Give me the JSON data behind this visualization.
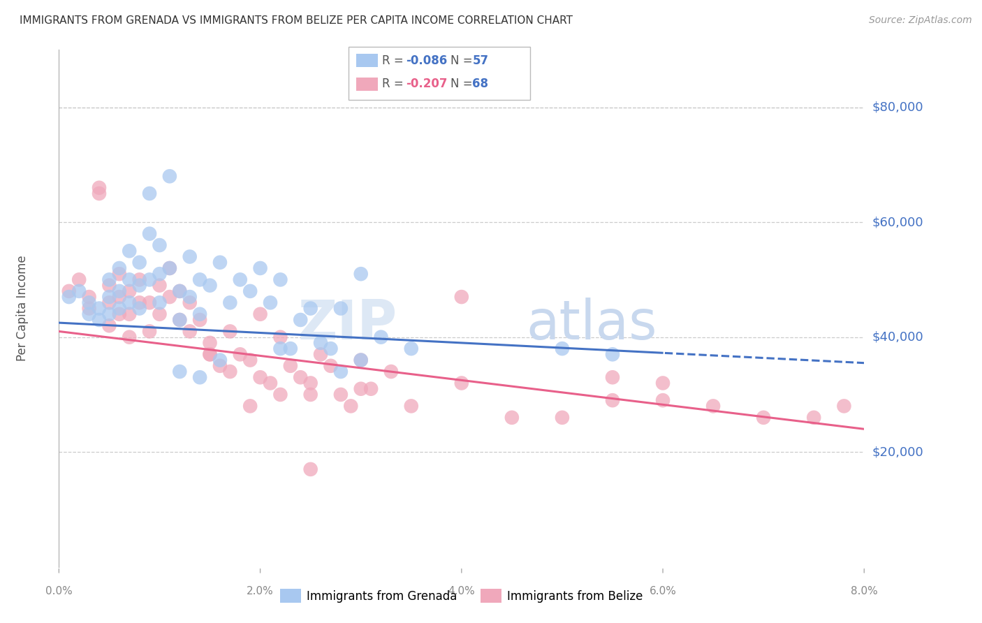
{
  "title": "IMMIGRANTS FROM GRENADA VS IMMIGRANTS FROM BELIZE PER CAPITA INCOME CORRELATION CHART",
  "source": "Source: ZipAtlas.com",
  "ylabel": "Per Capita Income",
  "x_min": 0.0,
  "x_max": 0.08,
  "y_min": 0,
  "y_max": 90000,
  "yticks": [
    20000,
    40000,
    60000,
    80000
  ],
  "ytick_labels": [
    "$20,000",
    "$40,000",
    "$60,000",
    "$80,000"
  ],
  "grenada_R": -0.086,
  "grenada_N": 57,
  "belize_R": -0.207,
  "belize_N": 68,
  "grenada_color": "#A8C8F0",
  "belize_color": "#F0A8BB",
  "grenada_line_color": "#4472C4",
  "belize_line_color": "#E8608A",
  "background_color": "#FFFFFF",
  "grid_color": "#CCCCCC",
  "title_color": "#333333",
  "yaxis_label_color": "#4472C4",
  "watermark": "ZIPatlas",
  "grenada_x": [
    0.001,
    0.002,
    0.003,
    0.003,
    0.004,
    0.004,
    0.005,
    0.005,
    0.005,
    0.006,
    0.006,
    0.006,
    0.007,
    0.007,
    0.007,
    0.008,
    0.008,
    0.008,
    0.009,
    0.009,
    0.009,
    0.01,
    0.01,
    0.01,
    0.011,
    0.011,
    0.012,
    0.012,
    0.013,
    0.013,
    0.014,
    0.014,
    0.015,
    0.016,
    0.017,
    0.018,
    0.019,
    0.02,
    0.021,
    0.022,
    0.023,
    0.024,
    0.025,
    0.026,
    0.027,
    0.028,
    0.03,
    0.032,
    0.035,
    0.012,
    0.014,
    0.016,
    0.022,
    0.03,
    0.028,
    0.05,
    0.055
  ],
  "grenada_y": [
    47000,
    48000,
    46000,
    44000,
    45000,
    43000,
    50000,
    47000,
    44000,
    52000,
    48000,
    45000,
    55000,
    50000,
    46000,
    53000,
    49000,
    45000,
    65000,
    58000,
    50000,
    56000,
    51000,
    46000,
    68000,
    52000,
    48000,
    43000,
    54000,
    47000,
    50000,
    44000,
    49000,
    53000,
    46000,
    50000,
    48000,
    52000,
    46000,
    50000,
    38000,
    43000,
    45000,
    39000,
    38000,
    45000,
    51000,
    40000,
    38000,
    34000,
    33000,
    36000,
    38000,
    36000,
    34000,
    38000,
    37000
  ],
  "belize_x": [
    0.001,
    0.002,
    0.003,
    0.003,
    0.004,
    0.004,
    0.005,
    0.005,
    0.005,
    0.006,
    0.006,
    0.006,
    0.007,
    0.007,
    0.007,
    0.008,
    0.008,
    0.009,
    0.009,
    0.01,
    0.01,
    0.011,
    0.011,
    0.012,
    0.012,
    0.013,
    0.013,
    0.014,
    0.015,
    0.015,
    0.016,
    0.017,
    0.018,
    0.019,
    0.02,
    0.021,
    0.022,
    0.023,
    0.024,
    0.025,
    0.026,
    0.027,
    0.028,
    0.029,
    0.03,
    0.031,
    0.033,
    0.02,
    0.022,
    0.025,
    0.015,
    0.017,
    0.019,
    0.025,
    0.03,
    0.035,
    0.04,
    0.04,
    0.045,
    0.05,
    0.055,
    0.055,
    0.06,
    0.06,
    0.065,
    0.07,
    0.075,
    0.078
  ],
  "belize_y": [
    48000,
    50000,
    47000,
    45000,
    65000,
    66000,
    49000,
    46000,
    42000,
    51000,
    47000,
    44000,
    48000,
    44000,
    40000,
    50000,
    46000,
    46000,
    41000,
    49000,
    44000,
    52000,
    47000,
    48000,
    43000,
    46000,
    41000,
    43000,
    39000,
    37000,
    35000,
    41000,
    37000,
    36000,
    44000,
    32000,
    40000,
    35000,
    33000,
    17000,
    37000,
    35000,
    30000,
    28000,
    36000,
    31000,
    34000,
    33000,
    30000,
    30000,
    37000,
    34000,
    28000,
    32000,
    31000,
    28000,
    32000,
    47000,
    26000,
    26000,
    29000,
    33000,
    29000,
    32000,
    28000,
    26000,
    26000,
    28000
  ]
}
